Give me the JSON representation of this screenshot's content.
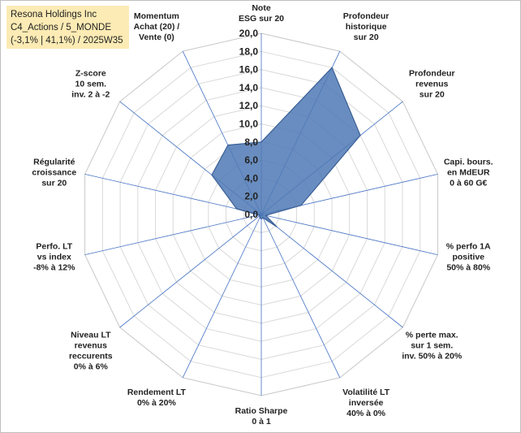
{
  "title_box": {
    "line1": "Resona Holdings Inc",
    "line2": "C4_Actions / 5_MONDE",
    "line3": "(-3,1% | 41,1%) / 2025W35"
  },
  "colors": {
    "fill": "#4f79b5",
    "stroke": "#3a5f95",
    "grid": "#d9d9d9",
    "spoke": "#4472c4",
    "title_bg": "#fcebb4"
  },
  "chart_data": {
    "type": "radar",
    "rmin": 0,
    "rmax": 20,
    "tick_step": 2,
    "ticks": [
      "0,0",
      "2,0",
      "4,0",
      "6,0",
      "8,0",
      "10,0",
      "12,0",
      "14,0",
      "16,0",
      "18,0",
      "20,0"
    ],
    "axes": [
      [
        "Note",
        "ESG sur 20"
      ],
      [
        "Profondeur",
        "historique",
        "sur 20"
      ],
      [
        "Profondeur",
        "revenus",
        "sur 20"
      ],
      [
        "Capi. bours.",
        "en MdEUR",
        "0 à 60 G€"
      ],
      [
        "% perfo 1A",
        "positive",
        "50% à 80%"
      ],
      [
        "% perte max.",
        "sur 1 sem.",
        "inv. 50% à 20%"
      ],
      [
        "Volatilité LT",
        "inversée",
        "40% à 0%"
      ],
      [
        "Ratio Sharpe",
        "0 à 1"
      ],
      [
        "Rendement LT",
        "0% à 20%"
      ],
      [
        "Niveau LT",
        "revenus",
        "reccurents",
        "0% à 6%"
      ],
      [
        "Perfo. LT",
        "vs index",
        "-8% à 12%"
      ],
      [
        "Régularité",
        "croissance",
        "sur 20"
      ],
      [
        "Z-score",
        "10 sem.",
        "inv. 2 à -2"
      ],
      [
        "Momentum",
        "Achat (20) /",
        "Vente (0)"
      ]
    ],
    "values": [
      8,
      18,
      14,
      4.5,
      0.5,
      2.2,
      0.4,
      0.5,
      0.4,
      0.2,
      0.3,
      2.8,
      7,
      8.5
    ],
    "grid": true,
    "legend": "none"
  }
}
